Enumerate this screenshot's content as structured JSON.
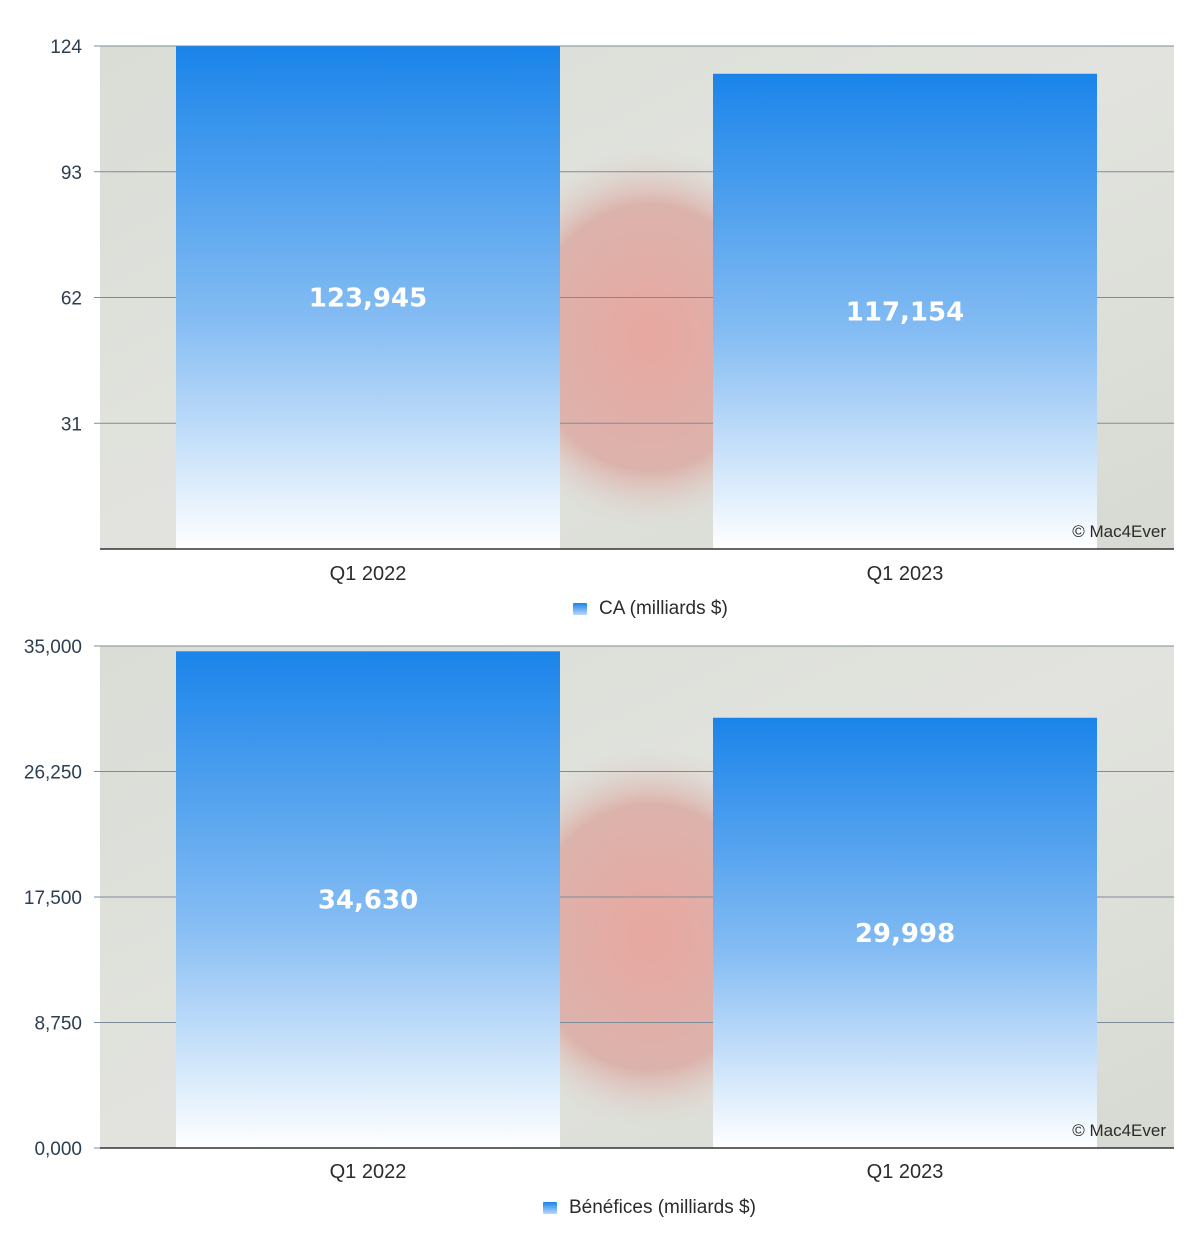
{
  "watermark": "© Mac4Ever",
  "colors": {
    "bar_top": "#1a84ea",
    "bar_bottom": "#ffffff",
    "gridline": "#7e8c9a",
    "axis": "#333333"
  },
  "chart_data": [
    {
      "type": "bar",
      "categories": [
        "Q1 2022",
        "Q1 2023"
      ],
      "series": [
        {
          "name": "CA (milliards $)",
          "values": [
            123.945,
            117.154
          ]
        }
      ],
      "data_labels": [
        "123,945",
        "117,154"
      ],
      "yticks": [
        "124",
        "93",
        "62",
        "31"
      ],
      "ylim": [
        0,
        124
      ],
      "grid": true,
      "legend": "bottom-center"
    },
    {
      "type": "bar",
      "categories": [
        "Q1 2022",
        "Q1 2023"
      ],
      "series": [
        {
          "name": "Bénéfices (milliards $)",
          "values": [
            34.63,
            29.998
          ]
        }
      ],
      "data_labels": [
        "34,630",
        "29,998"
      ],
      "yticks": [
        "35,000",
        "26,250",
        "17,500",
        "8,750",
        "0,000"
      ],
      "ylim": [
        0,
        35
      ],
      "grid": true,
      "legend": "bottom-center"
    }
  ]
}
